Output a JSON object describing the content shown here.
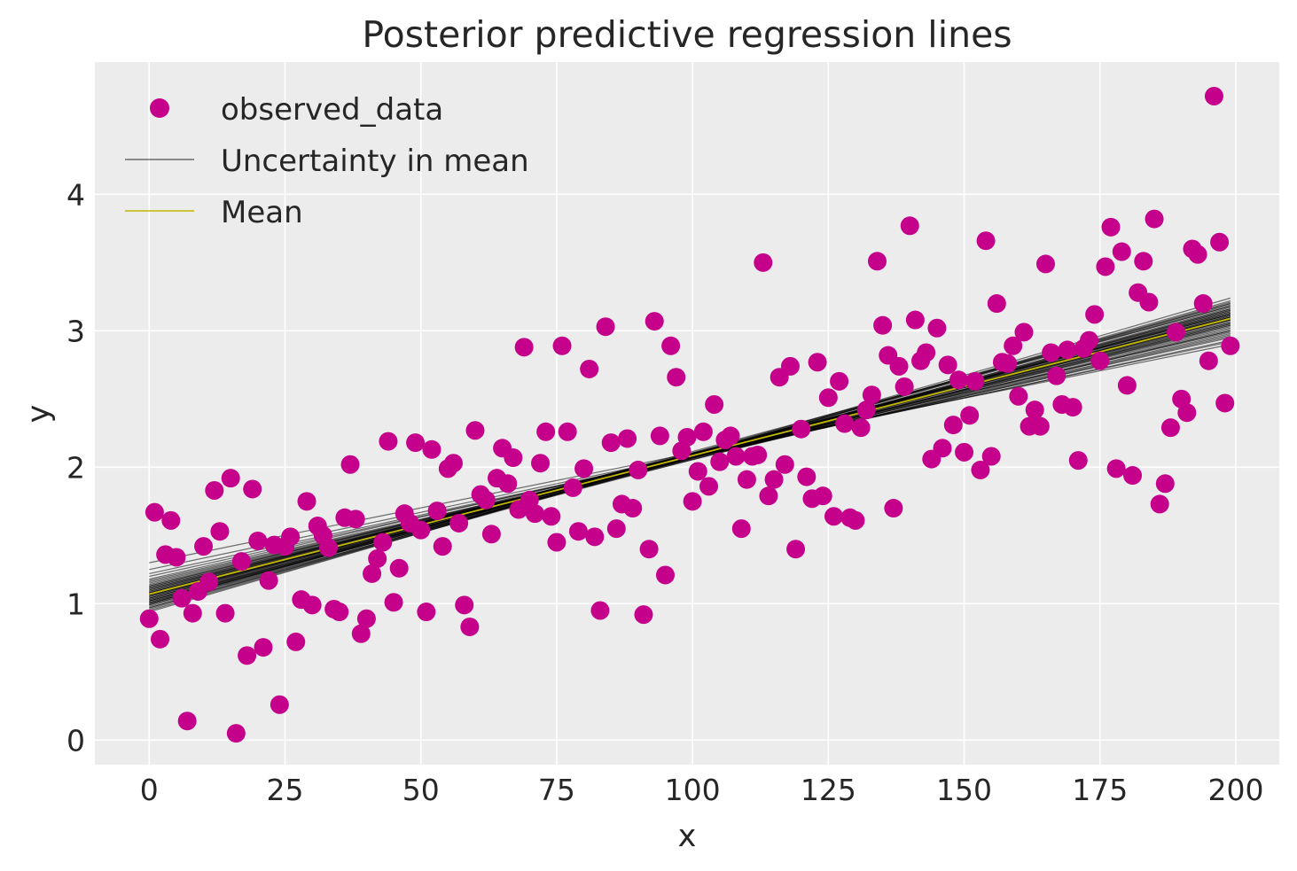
{
  "chart_data": {
    "type": "scatter",
    "title": "Posterior predictive regression lines",
    "xlabel": "x",
    "ylabel": "y",
    "xlim": [
      -10,
      208
    ],
    "ylim": [
      -0.18,
      4.97
    ],
    "grid": true,
    "legend_position": "top-left",
    "colors": {
      "background": "#ececec",
      "grid": "#ffffff",
      "observed": "#c5008b",
      "uncertainty": "#000000",
      "mean": "#c2b800"
    },
    "x_ticks": [
      0,
      25,
      50,
      75,
      100,
      125,
      150,
      175,
      200
    ],
    "x_tick_labels": [
      "0",
      "25",
      "50",
      "75",
      "100",
      "125",
      "150",
      "175",
      "200"
    ],
    "y_ticks": [
      0,
      1,
      2,
      3,
      4
    ],
    "y_tick_labels": [
      "0",
      "1",
      "2",
      "3",
      "4"
    ],
    "legend": [
      {
        "label": "observed_data",
        "kind": "marker"
      },
      {
        "label": "Uncertainty in mean",
        "kind": "line-gray"
      },
      {
        "label": "Mean",
        "kind": "line-yellow"
      }
    ],
    "series": [
      {
        "name": "observed_data",
        "kind": "scatter",
        "points": [
          [
            0,
            0.89
          ],
          [
            1,
            1.67
          ],
          [
            2,
            0.74
          ],
          [
            3,
            1.36
          ],
          [
            4,
            1.61
          ],
          [
            5,
            1.34
          ],
          [
            6,
            1.04
          ],
          [
            7,
            0.14
          ],
          [
            8,
            0.93
          ],
          [
            9,
            1.09
          ],
          [
            10,
            1.42
          ],
          [
            11,
            1.16
          ],
          [
            12,
            1.83
          ],
          [
            13,
            1.53
          ],
          [
            14,
            0.93
          ],
          [
            15,
            1.92
          ],
          [
            16,
            0.05
          ],
          [
            17,
            1.31
          ],
          [
            18,
            0.62
          ],
          [
            19,
            1.84
          ],
          [
            20,
            1.46
          ],
          [
            21,
            0.68
          ],
          [
            22,
            1.17
          ],
          [
            23,
            1.43
          ],
          [
            24,
            0.26
          ],
          [
            25,
            1.42
          ],
          [
            26,
            1.49
          ],
          [
            27,
            0.72
          ],
          [
            28,
            1.03
          ],
          [
            29,
            1.75
          ],
          [
            30,
            0.99
          ],
          [
            31,
            1.57
          ],
          [
            32,
            1.5
          ],
          [
            33,
            1.41
          ],
          [
            34,
            0.96
          ],
          [
            35,
            0.94
          ],
          [
            36,
            1.63
          ],
          [
            37,
            2.02
          ],
          [
            38,
            1.62
          ],
          [
            39,
            0.78
          ],
          [
            40,
            0.89
          ],
          [
            41,
            1.22
          ],
          [
            42,
            1.33
          ],
          [
            43,
            1.45
          ],
          [
            44,
            2.19
          ],
          [
            45,
            1.01
          ],
          [
            46,
            1.26
          ],
          [
            47,
            1.66
          ],
          [
            48,
            1.59
          ],
          [
            49,
            2.18
          ],
          [
            50,
            1.54
          ],
          [
            51,
            0.94
          ],
          [
            52,
            2.13
          ],
          [
            53,
            1.68
          ],
          [
            54,
            1.42
          ],
          [
            55,
            1.99
          ],
          [
            56,
            2.03
          ],
          [
            57,
            1.59
          ],
          [
            58,
            0.99
          ],
          [
            59,
            0.83
          ],
          [
            60,
            2.27
          ],
          [
            61,
            1.8
          ],
          [
            62,
            1.76
          ],
          [
            63,
            1.51
          ],
          [
            64,
            1.92
          ],
          [
            65,
            2.14
          ],
          [
            66,
            1.88
          ],
          [
            67,
            2.07
          ],
          [
            68,
            1.69
          ],
          [
            69,
            2.88
          ],
          [
            70,
            1.76
          ],
          [
            71,
            1.66
          ],
          [
            72,
            2.03
          ],
          [
            73,
            2.26
          ],
          [
            74,
            1.64
          ],
          [
            75,
            1.45
          ],
          [
            76,
            2.89
          ],
          [
            77,
            2.26
          ],
          [
            78,
            1.85
          ],
          [
            79,
            1.53
          ],
          [
            80,
            1.99
          ],
          [
            81,
            2.72
          ],
          [
            82,
            1.49
          ],
          [
            83,
            0.95
          ],
          [
            84,
            3.03
          ],
          [
            85,
            2.18
          ],
          [
            86,
            1.55
          ],
          [
            87,
            1.73
          ],
          [
            88,
            2.21
          ],
          [
            89,
            1.7
          ],
          [
            90,
            1.98
          ],
          [
            91,
            0.92
          ],
          [
            92,
            1.4
          ],
          [
            93,
            3.07
          ],
          [
            94,
            2.23
          ],
          [
            95,
            1.21
          ],
          [
            96,
            2.89
          ],
          [
            97,
            2.66
          ],
          [
            98,
            2.12
          ],
          [
            99,
            2.22
          ],
          [
            100,
            1.75
          ],
          [
            101,
            1.97
          ],
          [
            102,
            2.26
          ],
          [
            103,
            1.86
          ],
          [
            104,
            2.46
          ],
          [
            105,
            2.04
          ],
          [
            106,
            2.2
          ],
          [
            107,
            2.23
          ],
          [
            108,
            2.08
          ],
          [
            109,
            1.55
          ],
          [
            110,
            1.91
          ],
          [
            111,
            2.08
          ],
          [
            112,
            2.09
          ],
          [
            113,
            3.5
          ],
          [
            114,
            1.79
          ],
          [
            115,
            1.91
          ],
          [
            116,
            2.66
          ],
          [
            117,
            2.02
          ],
          [
            118,
            2.74
          ],
          [
            119,
            1.4
          ],
          [
            120,
            2.28
          ],
          [
            121,
            1.93
          ],
          [
            122,
            1.77
          ],
          [
            123,
            2.77
          ],
          [
            124,
            1.79
          ],
          [
            125,
            2.51
          ],
          [
            126,
            1.64
          ],
          [
            127,
            2.63
          ],
          [
            128,
            2.32
          ],
          [
            129,
            1.63
          ],
          [
            130,
            1.61
          ],
          [
            131,
            2.29
          ],
          [
            132,
            2.42
          ],
          [
            133,
            2.53
          ],
          [
            134,
            3.51
          ],
          [
            135,
            3.04
          ],
          [
            136,
            2.82
          ],
          [
            137,
            1.7
          ],
          [
            138,
            2.74
          ],
          [
            139,
            2.59
          ],
          [
            140,
            3.77
          ],
          [
            141,
            3.08
          ],
          [
            142,
            2.78
          ],
          [
            143,
            2.84
          ],
          [
            144,
            2.06
          ],
          [
            145,
            3.02
          ],
          [
            146,
            2.14
          ],
          [
            147,
            2.75
          ],
          [
            148,
            2.31
          ],
          [
            149,
            2.64
          ],
          [
            150,
            2.11
          ],
          [
            151,
            2.38
          ],
          [
            152,
            2.63
          ],
          [
            153,
            1.98
          ],
          [
            154,
            3.66
          ],
          [
            155,
            2.08
          ],
          [
            156,
            3.2
          ],
          [
            157,
            2.77
          ],
          [
            158,
            2.76
          ],
          [
            159,
            2.89
          ],
          [
            160,
            2.52
          ],
          [
            161,
            2.99
          ],
          [
            162,
            2.3
          ],
          [
            163,
            2.42
          ],
          [
            164,
            2.3
          ],
          [
            165,
            3.49
          ],
          [
            166,
            2.84
          ],
          [
            167,
            2.67
          ],
          [
            168,
            2.46
          ],
          [
            169,
            2.86
          ],
          [
            170,
            2.44
          ],
          [
            171,
            2.05
          ],
          [
            172,
            2.87
          ],
          [
            173,
            2.93
          ],
          [
            174,
            3.12
          ],
          [
            175,
            2.78
          ],
          [
            176,
            3.47
          ],
          [
            177,
            3.76
          ],
          [
            178,
            1.99
          ],
          [
            179,
            3.58
          ],
          [
            180,
            2.6
          ],
          [
            181,
            1.94
          ],
          [
            182,
            3.28
          ],
          [
            183,
            3.51
          ],
          [
            184,
            3.21
          ],
          [
            185,
            3.82
          ],
          [
            186,
            1.73
          ],
          [
            187,
            1.88
          ],
          [
            188,
            2.29
          ],
          [
            189,
            2.99
          ],
          [
            190,
            2.5
          ],
          [
            191,
            2.4
          ],
          [
            192,
            3.6
          ],
          [
            193,
            3.56
          ],
          [
            194,
            3.2
          ],
          [
            195,
            2.78
          ],
          [
            196,
            4.72
          ],
          [
            197,
            3.65
          ],
          [
            198,
            2.47
          ],
          [
            199,
            2.89
          ]
        ]
      },
      {
        "name": "Uncertainty in mean",
        "kind": "lines",
        "x_range": [
          0,
          199
        ],
        "lines": [
          [
            1.06,
            3.1
          ],
          [
            1.02,
            3.14
          ],
          [
            1.1,
            3.05
          ],
          [
            0.97,
            3.2
          ],
          [
            1.13,
            3.02
          ],
          [
            1.0,
            3.18
          ],
          [
            1.08,
            3.08
          ],
          [
            1.04,
            3.12
          ],
          [
            1.15,
            2.98
          ],
          [
            0.95,
            3.22
          ],
          [
            1.07,
            3.06
          ],
          [
            1.01,
            3.16
          ],
          [
            1.11,
            3.04
          ],
          [
            0.99,
            3.19
          ],
          [
            1.05,
            3.11
          ],
          [
            1.09,
            3.07
          ],
          [
            1.03,
            3.13
          ],
          [
            1.17,
            2.96
          ],
          [
            0.96,
            3.21
          ],
          [
            1.12,
            3.03
          ],
          [
            1.06,
            3.09
          ],
          [
            1.0,
            3.15
          ],
          [
            1.14,
            3.0
          ],
          [
            0.98,
            3.17
          ],
          [
            1.2,
            2.95
          ],
          [
            1.04,
            3.1
          ],
          [
            1.08,
            3.05
          ],
          [
            1.02,
            3.15
          ],
          [
            1.25,
            2.92
          ],
          [
            1.3,
            2.9
          ],
          [
            1.1,
            3.08
          ],
          [
            0.94,
            3.24
          ],
          [
            1.05,
            3.13
          ],
          [
            1.12,
            3.01
          ],
          [
            1.07,
            3.12
          ],
          [
            1.01,
            3.11
          ],
          [
            1.18,
            2.99
          ],
          [
            0.97,
            3.16
          ],
          [
            1.03,
            3.09
          ],
          [
            1.09,
            3.1
          ],
          [
            1.13,
            3.06
          ],
          [
            1.0,
            3.2
          ],
          [
            1.06,
            3.04
          ],
          [
            1.16,
            2.97
          ],
          [
            0.99,
            3.14
          ],
          [
            1.22,
            2.93
          ],
          [
            1.04,
            3.18
          ],
          [
            1.11,
            3.0
          ],
          [
            1.08,
            3.12
          ],
          [
            1.02,
            3.08
          ]
        ]
      },
      {
        "name": "Mean",
        "kind": "line",
        "x_range": [
          0,
          199
        ],
        "y_range": [
          1.07,
          3.09
        ]
      }
    ]
  }
}
